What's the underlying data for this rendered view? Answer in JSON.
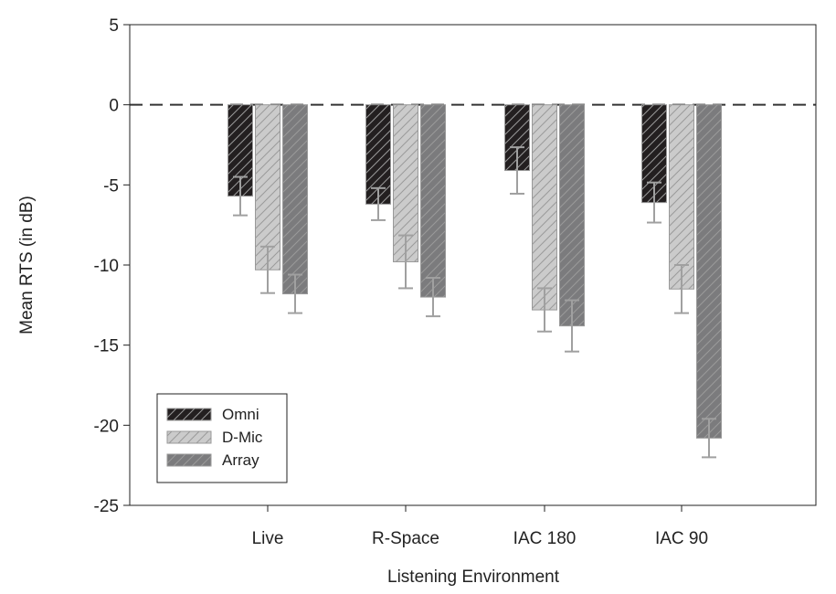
{
  "chart_data": {
    "type": "bar",
    "xlabel": "Listening Environment",
    "ylabel": "Mean RTS (in dB)",
    "ylim": [
      -25,
      5
    ],
    "yticks": [
      "5",
      "0",
      "-5",
      "-10",
      "-15",
      "-20",
      "-25"
    ],
    "ytick_values": [
      5,
      0,
      -5,
      -10,
      -15,
      -20,
      -25
    ],
    "categories": [
      "Live",
      "R-Space",
      "IAC 180",
      "IAC 90"
    ],
    "reference_line": 0,
    "legend_position": "bottom-left",
    "series": [
      {
        "name": "Omni",
        "color": "#231f20",
        "values": [
          -5.7,
          -6.2,
          -4.1,
          -6.1
        ],
        "errors": [
          1.2,
          1.0,
          1.45,
          1.25
        ]
      },
      {
        "name": "D-Mic",
        "color": "#cbcbcb",
        "values": [
          -10.3,
          -9.8,
          -12.8,
          -11.5
        ],
        "errors": [
          1.45,
          1.65,
          1.35,
          1.5
        ]
      },
      {
        "name": "Array",
        "color": "#7b7b7d",
        "values": [
          -11.8,
          -12.0,
          -13.8,
          -20.8
        ],
        "errors": [
          1.2,
          1.2,
          1.6,
          1.2
        ]
      }
    ]
  }
}
